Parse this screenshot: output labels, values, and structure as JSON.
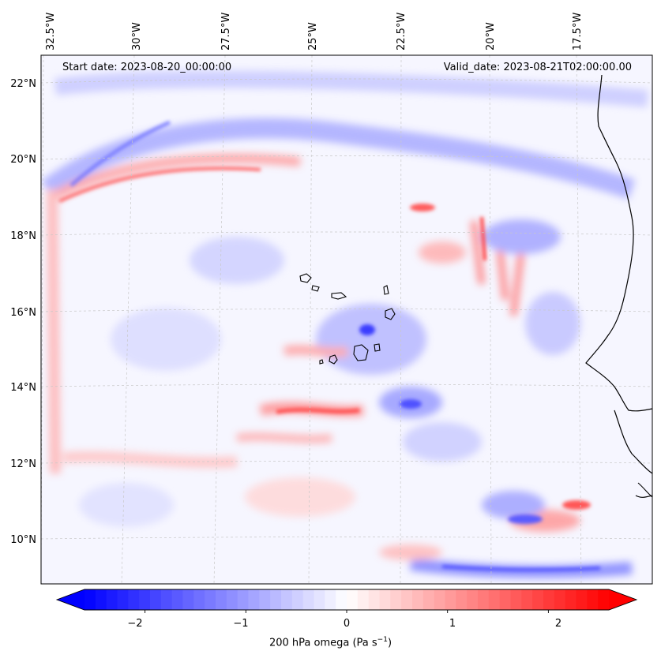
{
  "header": {
    "start_date": "Start date: 2023-08-20_00:00:00",
    "valid_date": "Valid_date: 2023-08-21T02:00:00.00"
  },
  "axes": {
    "lon_labels": [
      "32.5°W",
      "30°W",
      "27.5°W",
      "25°W",
      "22.5°W",
      "20°W",
      "17.5°W"
    ],
    "lat_labels": [
      "22°N",
      "20°N",
      "18°N",
      "16°N",
      "14°N",
      "12°N",
      "10°N"
    ]
  },
  "colorbar": {
    "ticks": [
      "−2",
      "−1",
      "0",
      "1",
      "2"
    ],
    "label_main": "200 hPa omega (Pa s",
    "label_sup": "−1",
    "label_end": ")",
    "vmin": -2.6,
    "vmax": 2.6,
    "low_color": "#0000ff",
    "mid_color": "#ffffff",
    "high_color": "#ff0000"
  },
  "colors": {
    "land_outline": "#000000",
    "island_outline": "#000000",
    "grid": "#c8c8c8"
  }
}
